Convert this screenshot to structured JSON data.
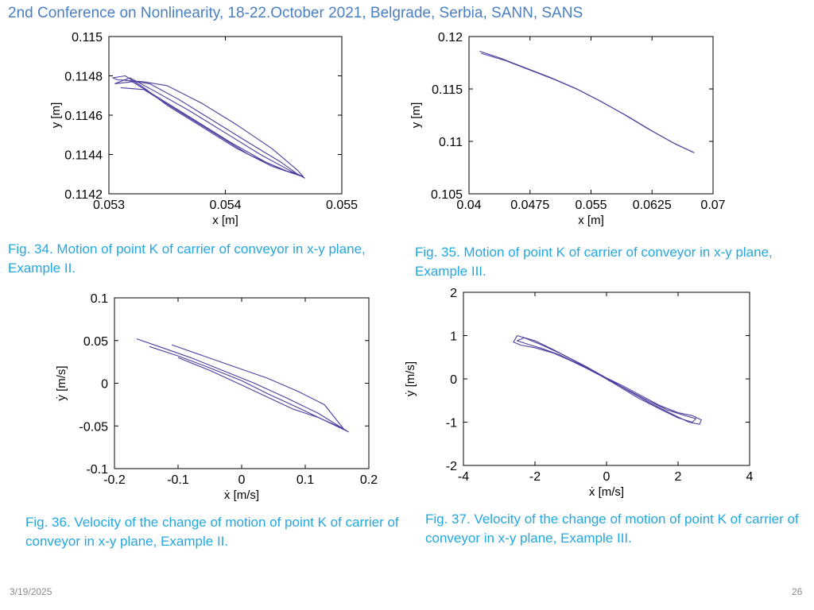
{
  "header": {
    "title": "2nd Conference on Nonlinearity, 18-22.October 2021, Belgrade, Serbia, SANN, SANS"
  },
  "footer": {
    "date": "3/19/2025",
    "page": "26"
  },
  "colors": {
    "trace": "#4b3f9e",
    "header": "#4a7fc1",
    "caption": "#22a7e0"
  },
  "figures": [
    {
      "caption": "Fig. 34. Motion of point K of carrier of conveyor in x-y plane, Example II."
    },
    {
      "caption": "Fig. 35. Motion of point K of carrier of conveyor in x-y plane, Example III."
    },
    {
      "caption": "Fig. 36. Velocity of the change of motion of point K of carrier of conveyor in x-y plane, Example II."
    },
    {
      "caption": "Fig. 37. Velocity of the change of motion of point K of carrier of conveyor in x-y plane, Example III."
    }
  ],
  "chart_data": [
    {
      "type": "line",
      "xlabel": "x [m]",
      "ylabel": "y [m]",
      "xlim": [
        0.053,
        0.055
      ],
      "ylim": [
        0.1142,
        0.115
      ],
      "xticks": [
        "0.053",
        "0.054",
        "0.055"
      ],
      "yticks": [
        "0.1142",
        "0.1144",
        "0.1146",
        "0.1148",
        "0.115"
      ],
      "series": [
        {
          "x": [
            0.05303,
            0.05314,
            0.0533,
            0.0535,
            0.0538,
            0.0541,
            0.0544,
            0.05465,
            0.05468,
            0.05462,
            0.0544,
            0.0541,
            0.0538,
            0.0535,
            0.0533,
            0.05308,
            0.05303
          ],
          "y": [
            0.11479,
            0.1148,
            0.11474,
            0.11465,
            0.11454,
            0.11443,
            0.11434,
            0.11429,
            0.11428,
            0.11432,
            0.11443,
            0.11455,
            0.11466,
            0.11475,
            0.11477,
            0.11478,
            0.11479
          ]
        },
        {
          "x": [
            0.05305,
            0.0532,
            0.05345,
            0.05375,
            0.05405,
            0.05435,
            0.05455,
            0.05466,
            0.05458,
            0.0543,
            0.054,
            0.0537,
            0.0534,
            0.05318,
            0.05305
          ],
          "y": [
            0.11476,
            0.11477,
            0.11468,
            0.11457,
            0.11446,
            0.11436,
            0.11431,
            0.11429,
            0.11431,
            0.1144,
            0.11451,
            0.11462,
            0.11472,
            0.11479,
            0.11476
          ]
        },
        {
          "x": [
            0.0531,
            0.0533,
            0.0536,
            0.0539,
            0.0542,
            0.0545,
            0.05462,
            0.05448,
            0.0542,
            0.0539,
            0.0536,
            0.05335,
            0.05312
          ],
          "y": [
            0.11474,
            0.11473,
            0.11462,
            0.11451,
            0.1144,
            0.11432,
            0.1143,
            0.11436,
            0.11446,
            0.11457,
            0.11468,
            0.11476,
            0.11478
          ]
        }
      ]
    },
    {
      "type": "line",
      "xlabel": "x [m]",
      "ylabel": "y [m]",
      "xlim": [
        0.04,
        0.07
      ],
      "ylim": [
        0.105,
        0.12
      ],
      "xticks": [
        "0.04",
        "0.0475",
        "0.055",
        "0.0625",
        "0.07"
      ],
      "yticks": [
        "0.105",
        "0.11",
        "0.115",
        "0.12"
      ],
      "series": [
        {
          "x": [
            0.0413,
            0.044,
            0.047,
            0.05,
            0.053,
            0.056,
            0.059,
            0.062,
            0.065,
            0.0677
          ],
          "y": [
            0.1186,
            0.1179,
            0.117,
            0.1161,
            0.1151,
            0.1139,
            0.1126,
            0.1112,
            0.1099,
            0.1089
          ]
        },
        {
          "x": [
            0.0415,
            0.0445,
            0.0475,
            0.0505,
            0.0535,
            0.0565,
            0.0595,
            0.0625,
            0.0655,
            0.0675
          ],
          "y": [
            0.1184,
            0.1177,
            0.1168,
            0.1159,
            0.1149,
            0.1137,
            0.1124,
            0.111,
            0.1097,
            0.109
          ]
        }
      ]
    },
    {
      "type": "line",
      "xlabel": "ẋ [m/s]",
      "ylabel": "ẏ [m/s]",
      "xlim": [
        -0.2,
        0.2
      ],
      "ylim": [
        -0.1,
        0.1
      ],
      "xticks": [
        "-0.2",
        "-0.1",
        "0",
        "0.1",
        "0.2"
      ],
      "yticks": [
        "-0.1",
        "-0.05",
        "0",
        "0.05",
        "0.1"
      ],
      "series": [
        {
          "x": [
            -0.165,
            -0.13,
            -0.08,
            -0.03,
            0.02,
            0.07,
            0.12,
            0.168,
            0.14,
            0.09,
            0.04,
            0.0,
            -0.05,
            -0.1,
            -0.145
          ],
          "y": [
            0.052,
            0.043,
            0.03,
            0.015,
            0.0,
            -0.017,
            -0.035,
            -0.057,
            -0.047,
            -0.029,
            -0.012,
            0.003,
            0.018,
            0.032,
            0.043
          ]
        },
        {
          "x": [
            -0.11,
            -0.06,
            -0.01,
            0.04,
            0.09,
            0.13,
            0.16,
            0.12,
            0.08,
            0.04,
            0.0,
            -0.05,
            -0.1
          ],
          "y": [
            0.045,
            0.032,
            0.019,
            0.006,
            -0.01,
            -0.025,
            -0.053,
            -0.04,
            -0.03,
            -0.016,
            -0.002,
            0.015,
            0.03
          ]
        }
      ]
    },
    {
      "type": "line",
      "xlabel": "ẋ [m/s]",
      "ylabel": "ẏ [m/s]",
      "xlim": [
        -4,
        4
      ],
      "ylim": [
        -2,
        2
      ],
      "xticks": [
        "-4",
        "-2",
        "0",
        "2",
        "4"
      ],
      "yticks": [
        "-2",
        "-1",
        "0",
        "1",
        "2"
      ],
      "series": [
        {
          "x": [
            -2.5,
            -2.6,
            -2.4,
            -2.0,
            -1.5,
            -1.0,
            -0.5,
            0.0,
            0.5,
            1.0,
            1.5,
            2.0,
            2.4,
            2.65,
            2.6,
            2.3,
            1.8,
            1.2,
            0.6,
            0.0,
            -0.6,
            -1.2,
            -1.8,
            -2.3,
            -2.5
          ],
          "y": [
            1.0,
            0.85,
            0.78,
            0.72,
            0.6,
            0.42,
            0.22,
            0.02,
            -0.18,
            -0.4,
            -0.62,
            -0.78,
            -0.85,
            -0.95,
            -1.05,
            -1.0,
            -0.8,
            -0.55,
            -0.27,
            0.02,
            0.3,
            0.55,
            0.78,
            0.95,
            1.0
          ]
        },
        {
          "x": [
            -2.3,
            -2.5,
            -2.2,
            -1.8,
            -1.3,
            -0.8,
            -0.3,
            0.2,
            0.7,
            1.2,
            1.7,
            2.2,
            2.5,
            2.4,
            2.0,
            1.5,
            0.9,
            0.3,
            -0.3,
            -0.9,
            -1.5,
            -2.0,
            -2.3
          ],
          "y": [
            0.95,
            0.88,
            0.8,
            0.7,
            0.55,
            0.35,
            0.13,
            -0.08,
            -0.3,
            -0.52,
            -0.72,
            -0.85,
            -0.92,
            -1.0,
            -0.9,
            -0.7,
            -0.45,
            -0.15,
            0.14,
            0.42,
            0.68,
            0.88,
            0.95
          ]
        }
      ]
    }
  ]
}
